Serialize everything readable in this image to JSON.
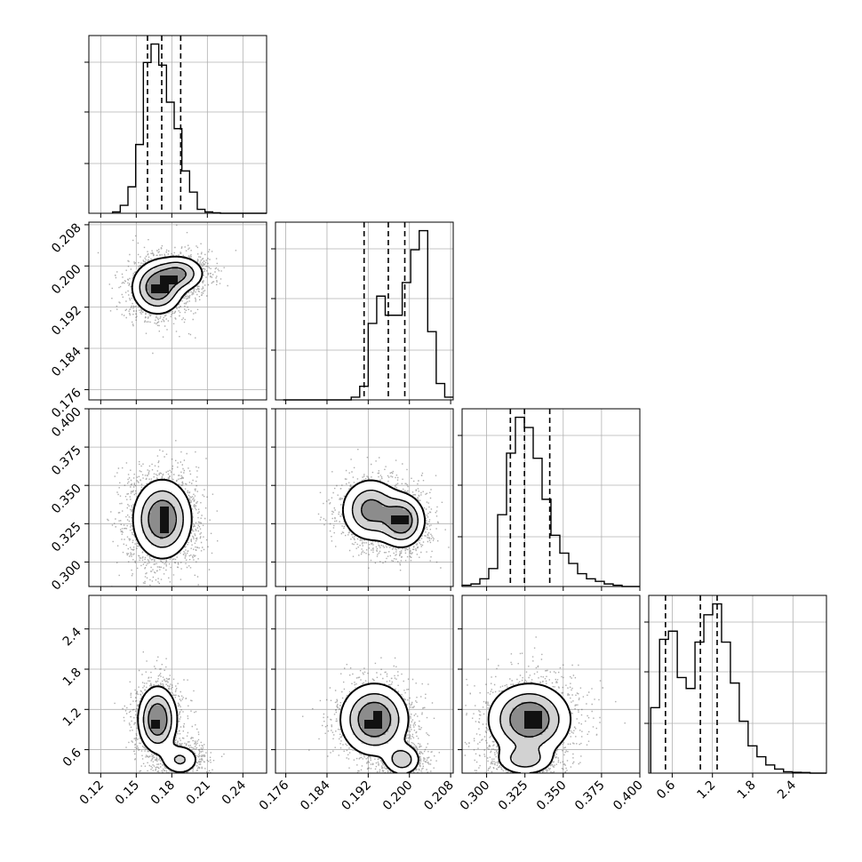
{
  "chart_data": {
    "type": "corner",
    "parameters": [
      {
        "ticks": [
          0.12,
          0.15,
          0.18,
          0.21,
          0.24
        ],
        "tick_labels": [
          "0.12",
          "0.15",
          "0.18",
          "0.21",
          "0.24"
        ],
        "range": [
          0.11,
          0.26
        ]
      },
      {
        "ticks": [
          0.176,
          0.184,
          0.192,
          0.2,
          0.208
        ],
        "tick_labels": [
          "0.176",
          "0.184",
          "0.192",
          "0.200",
          "0.208"
        ],
        "range": [
          0.174,
          0.2085
        ]
      },
      {
        "ticks": [
          0.3,
          0.325,
          0.35,
          0.375,
          0.4
        ],
        "tick_labels": [
          "0.300",
          "0.325",
          "0.350",
          "0.375",
          "0.400"
        ],
        "range": [
          0.284,
          0.4
        ]
      },
      {
        "ticks": [
          0.6,
          1.2,
          1.8,
          2.4
        ],
        "tick_labels": [
          "0.6",
          "1.2",
          "1.8",
          "2.4"
        ],
        "range": [
          0.25,
          2.9
        ]
      }
    ],
    "histograms": [
      {
        "param": 0,
        "edges_start": 0.13,
        "bin_width": 0.0065,
        "counts": [
          0.5,
          3,
          10,
          26,
          57,
          64,
          56,
          42,
          32,
          16,
          8,
          1.5,
          0.5,
          0.2,
          0,
          0,
          0,
          0,
          0,
          0
        ],
        "quantiles": [
          0.1595,
          0.1715,
          0.1875
        ]
      },
      {
        "param": 1,
        "edges_start": 0.1755,
        "bin_width": 0.00165,
        "counts": [
          0,
          0,
          0,
          0,
          0,
          0,
          0,
          0,
          1,
          5,
          28,
          38,
          31,
          31,
          43,
          55,
          62,
          25,
          6,
          1
        ],
        "quantiles": [
          0.1912,
          0.1959,
          0.1991
        ]
      },
      {
        "param": 2,
        "edges_start": 0.284,
        "bin_width": 0.0058,
        "counts": [
          0.5,
          1,
          3,
          7,
          28,
          52,
          66,
          62,
          50,
          34,
          20,
          13,
          9,
          5,
          3,
          2,
          1,
          0.5,
          0,
          0
        ],
        "quantiles": [
          0.3155,
          0.3247,
          0.3412
        ]
      },
      {
        "param": 3,
        "edges_start": 0.28,
        "bin_width": 0.132,
        "counts": [
          24,
          49,
          52,
          35,
          31,
          48,
          58,
          62,
          48,
          33,
          19,
          10,
          6,
          3,
          1.5,
          0.5,
          0.3,
          0.2,
          0,
          0
        ],
        "quantiles": [
          0.5,
          1.02,
          1.27
        ]
      }
    ],
    "density": [
      {
        "x": 1,
        "y": 0,
        "modes": [
          {
            "x": 0.168,
            "y": 0.1958,
            "sx": 0.0105,
            "sy": 0.0025,
            "w": 0.58
          },
          {
            "x": 0.186,
            "y": 0.1985,
            "sx": 0.0105,
            "sy": 0.0017,
            "w": 0.42
          }
        ]
      },
      {
        "x": 2,
        "y": 0,
        "modes": [
          {
            "x": 0.172,
            "y": 0.328,
            "sx": 0.012,
            "sy": 0.0125,
            "w": 1.0
          }
        ]
      },
      {
        "x": 2,
        "y": 1,
        "modes": [
          {
            "x": 0.1925,
            "y": 0.334,
            "sx": 0.0028,
            "sy": 0.01,
            "w": 0.45
          },
          {
            "x": 0.1985,
            "y": 0.327,
            "sx": 0.0022,
            "sy": 0.0085,
            "w": 0.55
          }
        ]
      },
      {
        "x": 3,
        "y": 0,
        "modes": [
          {
            "x": 0.168,
            "y": 1.05,
            "sx": 0.008,
            "sy": 0.24,
            "w": 0.72
          },
          {
            "x": 0.187,
            "y": 0.45,
            "sx": 0.0085,
            "sy": 0.12,
            "w": 0.28
          }
        ]
      },
      {
        "x": 3,
        "y": 1,
        "modes": [
          {
            "x": 0.1932,
            "y": 1.05,
            "sx": 0.0032,
            "sy": 0.26,
            "w": 0.65
          },
          {
            "x": 0.1986,
            "y": 0.45,
            "sx": 0.0018,
            "sy": 0.12,
            "w": 0.35
          }
        ]
      },
      {
        "x": 3,
        "y": 2,
        "modes": [
          {
            "x": 0.328,
            "y": 1.05,
            "sx": 0.013,
            "sy": 0.26,
            "w": 0.68
          },
          {
            "x": 0.325,
            "y": 0.45,
            "sx": 0.0095,
            "sy": 0.12,
            "w": 0.32
          }
        ]
      }
    ],
    "contour_levels": [
      0.12,
      0.34,
      0.62
    ],
    "grid": true,
    "colors": {
      "hist": "#000000",
      "points": "#4a4a4a",
      "fill_light": "#ffffff",
      "fill_mid": "#d2d2d2",
      "fill_dark": "#8c8c8c",
      "grid": "#b0b0b0"
    }
  }
}
